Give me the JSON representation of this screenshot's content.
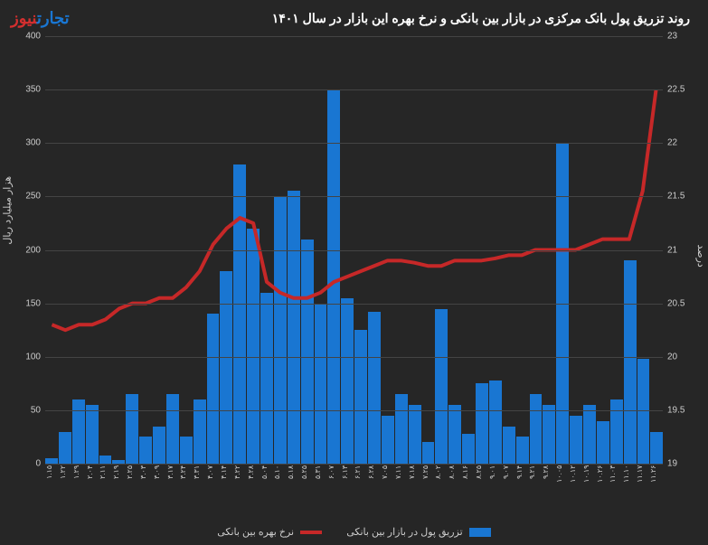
{
  "title": "روند تزریق پول بانک مرکزی در بازار بین بانکی و نرخ بهره این بازار در سال ۱۴۰۱",
  "logo": {
    "part1": "تجارت",
    "part2": "نیوز"
  },
  "chart": {
    "type": "bar+line",
    "background_color": "#262626",
    "grid_color": "#444444",
    "text_color": "#cccccc",
    "bar_color": "#1976d2",
    "line_color": "#c62828",
    "line_width": 4,
    "y_left": {
      "title": "هزار میلیارد ریال",
      "min": 0,
      "max": 400,
      "step": 50,
      "ticks": [
        0,
        50,
        100,
        150,
        200,
        250,
        300,
        350,
        400
      ]
    },
    "y_right": {
      "title": "درصد",
      "min": 19,
      "max": 23,
      "step": 0.5,
      "ticks": [
        19,
        19.5,
        20,
        20.5,
        21,
        21.5,
        22,
        22.5,
        23
      ]
    },
    "categories": [
      "۱.۱۵",
      "۱.۲۲",
      "۱.۲۹",
      "۲.۰۴",
      "۲.۱۱",
      "۲.۱۹",
      "۲.۲۵",
      "۳.۰۳",
      "۳.۰۹",
      "۳.۱۷",
      "۳.۲۴",
      "۳.۳۱",
      "۴.۰۷",
      "۴.۱۴",
      "۴.۲۲",
      "۴.۲۸",
      "۵.۰۴",
      "۵.۱۰",
      "۵.۱۸",
      "۵.۲۵",
      "۵.۳۱",
      "۶.۰۷",
      "۶.۱۳",
      "۶.۲۱",
      "۶.۲۸",
      "۷.۰۵",
      "۷.۱۱",
      "۷.۱۸",
      "۷.۲۵",
      "۸.۰۲",
      "۸.۰۸",
      "۸.۱۶",
      "۸.۲۵",
      "۹.۰۱",
      "۹.۰۷",
      "۹.۱۴",
      "۹.۲۱",
      "۹.۲۸",
      "۱۰.۰۵",
      "۱۰.۱۲",
      "۱۰.۱۹",
      "۱۰.۲۶",
      "۱۱.۰۳",
      "۱۱.۱۰",
      "۱۱.۱۷",
      "۱۱.۲۶"
    ],
    "bar_values": [
      5,
      30,
      60,
      55,
      8,
      3,
      65,
      25,
      35,
      65,
      25,
      60,
      140,
      180,
      280,
      220,
      160,
      250,
      255,
      210,
      150,
      350,
      155,
      125,
      142,
      45,
      65,
      55,
      20,
      145,
      55,
      28,
      75,
      78,
      35,
      25,
      65,
      55,
      300,
      45,
      55,
      40,
      60,
      190,
      98,
      30
    ],
    "line_values": [
      20.3,
      20.25,
      20.3,
      20.3,
      20.35,
      20.45,
      20.5,
      20.5,
      20.55,
      20.55,
      20.65,
      20.8,
      21.05,
      21.2,
      21.3,
      21.25,
      20.7,
      20.6,
      20.55,
      20.55,
      20.6,
      20.7,
      20.75,
      20.8,
      20.85,
      20.9,
      20.9,
      20.88,
      20.85,
      20.85,
      20.9,
      20.9,
      20.9,
      20.92,
      20.95,
      20.95,
      21,
      21,
      21,
      21,
      21.05,
      21.1,
      21.1,
      21.1,
      21.55,
      22.5
    ]
  },
  "legend": {
    "bar": "تزریق پول در بازار بین بانکی",
    "line": "نرخ بهره بین بانکی"
  }
}
